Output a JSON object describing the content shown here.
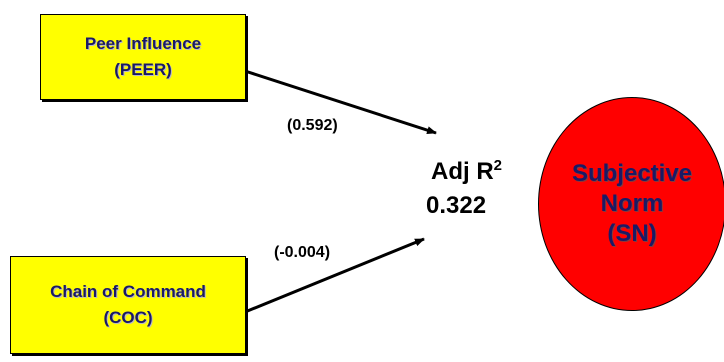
{
  "nodes": {
    "peer": {
      "line1": "Peer Influence",
      "line2": "(PEER)"
    },
    "coc": {
      "line1": "Chain of Command",
      "line2": "(COC)"
    },
    "sn": {
      "line1": "Subjective",
      "line2": "Norm",
      "line3": "(SN)"
    }
  },
  "edges": {
    "peer_to_sn": {
      "coefficient": "(0.592)"
    },
    "coc_to_sn": {
      "coefficient": "(-0.004)"
    }
  },
  "result": {
    "label": "Adj R",
    "superscript": "2",
    "value": "0.322"
  },
  "colors": {
    "box_fill": "#ffff00",
    "circle_fill": "#ff0000",
    "text_navy": "#1a1a66"
  }
}
